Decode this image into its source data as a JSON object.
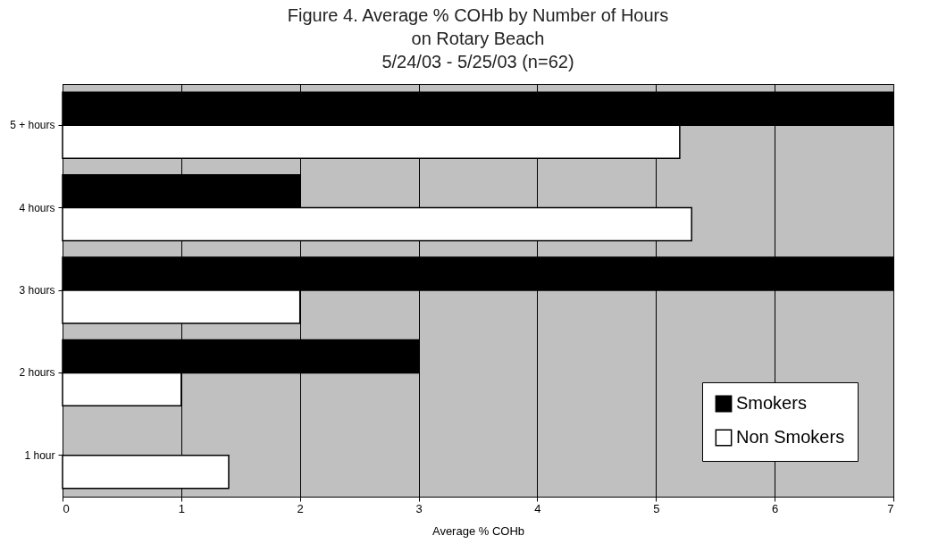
{
  "chart_data": {
    "type": "bar",
    "orientation": "horizontal",
    "title": "Figure 4.  Average % COHb by Number of Hours on Rotary Beach",
    "subtitle": "5/24/03 - 5/25/03 (n=62)",
    "xlabel": "Average % COHb",
    "categories": [
      "5 + hours",
      "4 hours",
      "3 hours",
      "2 hours",
      "1 hour"
    ],
    "series": [
      {
        "name": "Smokers",
        "color": "#000000",
        "values": [
          7,
          2,
          7,
          3,
          null
        ]
      },
      {
        "name": "Non Smokers",
        "color": "#ffffff",
        "values": [
          5.2,
          5.3,
          2,
          1,
          1.4
        ]
      }
    ],
    "xlim": [
      0,
      7
    ],
    "xticks": [
      0,
      1,
      2,
      3,
      4,
      5,
      6,
      7
    ],
    "grid": "x",
    "legend": "bottom right"
  }
}
